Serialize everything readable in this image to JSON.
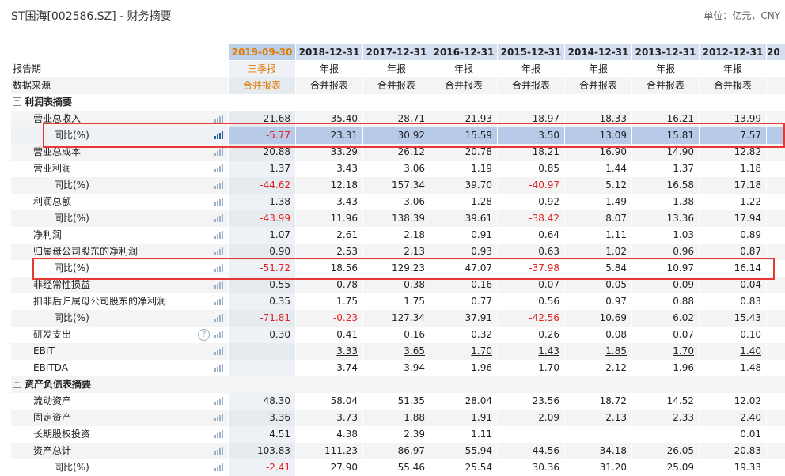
{
  "title": "ST围海[002586.SZ] - 财务摘要",
  "unit": "单位：亿元，CNY",
  "columns": [
    "2019-09-30",
    "2018-12-31",
    "2017-12-31",
    "2016-12-31",
    "2015-12-31",
    "2014-12-31",
    "2013-12-31",
    "2012-12-31"
  ],
  "tail_header": "20",
  "rows": [
    {
      "label": "报告期",
      "type": "sub",
      "values": [
        "三季报",
        "年报",
        "年报",
        "年报",
        "年报",
        "年报",
        "年报",
        "年报"
      ]
    },
    {
      "label": "数据来源",
      "type": "sub",
      "values": [
        "合并报表",
        "合并报表",
        "合并报表",
        "合并报表",
        "合并报表",
        "合并报表",
        "合并报表",
        "合并报表"
      ]
    },
    {
      "label": "利润表摘要",
      "type": "section"
    },
    {
      "label": "营业总收入",
      "type": "l1",
      "values": [
        "21.68",
        "35.40",
        "28.71",
        "21.93",
        "18.97",
        "18.33",
        "16.21",
        "13.99"
      ]
    },
    {
      "label": "同比(%)",
      "type": "l2",
      "highlight": true,
      "values": [
        "-5.77",
        "23.31",
        "30.92",
        "15.59",
        "3.50",
        "13.09",
        "15.81",
        "7.57"
      ]
    },
    {
      "label": "营业总成本",
      "type": "l1",
      "values": [
        "20.88",
        "33.29",
        "26.12",
        "20.78",
        "18.21",
        "16.90",
        "14.90",
        "12.82"
      ]
    },
    {
      "label": "营业利润",
      "type": "l1",
      "values": [
        "1.37",
        "3.43",
        "3.06",
        "1.19",
        "0.85",
        "1.44",
        "1.37",
        "1.18"
      ]
    },
    {
      "label": "同比(%)",
      "type": "l2",
      "values": [
        "-44.62",
        "12.18",
        "157.34",
        "39.70",
        "-40.97",
        "5.12",
        "16.58",
        "17.18"
      ]
    },
    {
      "label": "利润总额",
      "type": "l1",
      "values": [
        "1.38",
        "3.43",
        "3.06",
        "1.28",
        "0.92",
        "1.49",
        "1.38",
        "1.22"
      ]
    },
    {
      "label": "同比(%)",
      "type": "l2",
      "values": [
        "-43.99",
        "11.96",
        "138.39",
        "39.61",
        "-38.42",
        "8.07",
        "13.36",
        "17.94"
      ]
    },
    {
      "label": "净利润",
      "type": "l1",
      "values": [
        "1.07",
        "2.61",
        "2.18",
        "0.91",
        "0.64",
        "1.11",
        "1.03",
        "0.89"
      ]
    },
    {
      "label": "归属母公司股东的净利润",
      "type": "l1",
      "values": [
        "0.90",
        "2.53",
        "2.13",
        "0.93",
        "0.63",
        "1.02",
        "0.96",
        "0.87"
      ]
    },
    {
      "label": "同比(%)",
      "type": "l2",
      "values": [
        "-51.72",
        "18.56",
        "129.23",
        "47.07",
        "-37.98",
        "5.84",
        "10.97",
        "16.14"
      ]
    },
    {
      "label": "非经常性损益",
      "type": "l1",
      "values": [
        "0.55",
        "0.78",
        "0.38",
        "0.16",
        "0.07",
        "0.05",
        "0.09",
        "0.04"
      ]
    },
    {
      "label": "扣非后归属母公司股东的净利润",
      "type": "l1",
      "values": [
        "0.35",
        "1.75",
        "1.75",
        "0.77",
        "0.56",
        "0.97",
        "0.88",
        "0.83"
      ]
    },
    {
      "label": "同比(%)",
      "type": "l2",
      "values": [
        "-71.81",
        "-0.23",
        "127.34",
        "37.91",
        "-42.56",
        "10.69",
        "6.02",
        "15.43"
      ]
    },
    {
      "label": "研发支出",
      "type": "l1",
      "help": true,
      "values": [
        "0.30",
        "0.41",
        "0.16",
        "0.32",
        "0.26",
        "0.08",
        "0.07",
        "0.10"
      ]
    },
    {
      "label": "EBIT",
      "type": "l1",
      "underline": true,
      "values": [
        "",
        "3.33",
        "3.65",
        "1.70",
        "1.43",
        "1.85",
        "1.70",
        "1.40"
      ]
    },
    {
      "label": "EBITDA",
      "type": "l1",
      "underline": true,
      "values": [
        "",
        "3.74",
        "3.94",
        "1.96",
        "1.70",
        "2.12",
        "1.96",
        "1.48"
      ]
    },
    {
      "label": "资产负债表摘要",
      "type": "section"
    },
    {
      "label": "流动资产",
      "type": "l1",
      "values": [
        "48.30",
        "58.04",
        "51.35",
        "28.04",
        "23.56",
        "18.72",
        "14.52",
        "12.02"
      ]
    },
    {
      "label": "固定资产",
      "type": "l1",
      "values": [
        "3.36",
        "3.73",
        "1.88",
        "1.91",
        "2.09",
        "2.13",
        "2.33",
        "2.40"
      ]
    },
    {
      "label": "长期股权投资",
      "type": "l1",
      "values": [
        "4.51",
        "4.38",
        "2.39",
        "1.11",
        "",
        "",
        "",
        "0.01"
      ]
    },
    {
      "label": "资产总计",
      "type": "l1",
      "values": [
        "103.83",
        "111.23",
        "86.97",
        "55.94",
        "44.56",
        "34.18",
        "26.05",
        "20.83"
      ]
    },
    {
      "label": "同比(%)",
      "type": "l2",
      "values": [
        "-2.41",
        "27.90",
        "55.46",
        "25.54",
        "30.36",
        "31.20",
        "25.09",
        "19.33"
      ]
    }
  ],
  "colors": {
    "accent": "#e07a00",
    "header_bg": "#d3dff0",
    "highlight": "#b7cbe9",
    "negative": "#e02020",
    "box": "#e53935"
  }
}
